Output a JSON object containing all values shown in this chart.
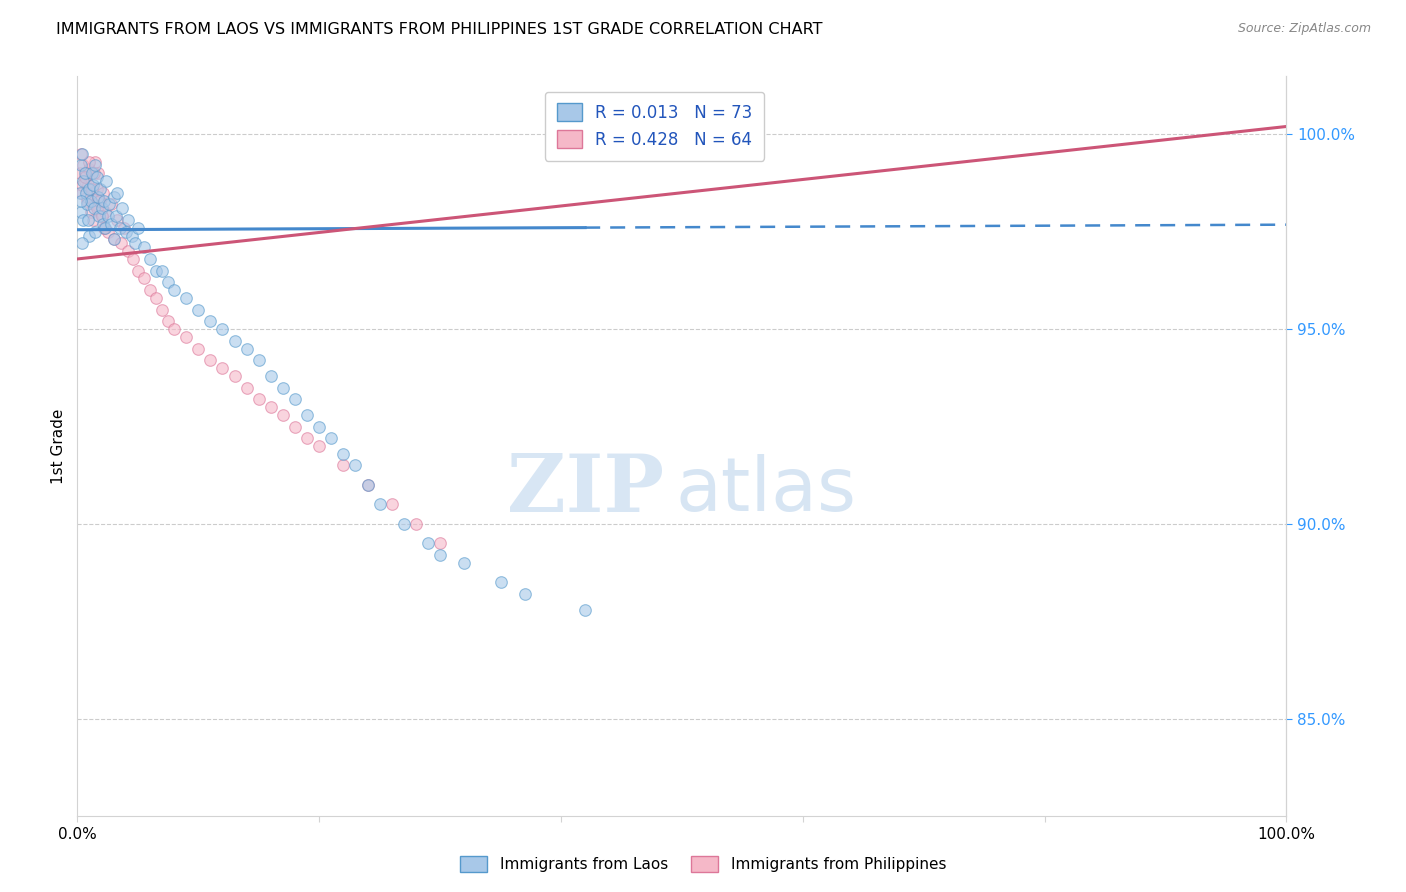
{
  "title": "IMMIGRANTS FROM LAOS VS IMMIGRANTS FROM PHILIPPINES 1ST GRADE CORRELATION CHART",
  "source": "Source: ZipAtlas.com",
  "ylabel": "1st Grade",
  "xmin": 0.0,
  "xmax": 100.0,
  "ymin": 82.5,
  "ymax": 101.5,
  "legend_blue_label": "Immigrants from Laos",
  "legend_pink_label": "Immigrants from Philippines",
  "R_blue": 0.013,
  "N_blue": 73,
  "R_pink": 0.428,
  "N_pink": 64,
  "blue_color": "#a8c8e8",
  "blue_edge_color": "#5599cc",
  "blue_line_color": "#4488cc",
  "pink_color": "#f5b8c8",
  "pink_edge_color": "#dd7799",
  "pink_line_color": "#cc5577",
  "scatter_alpha": 0.6,
  "scatter_size": 70,
  "blue_trend_start_x": 0.0,
  "blue_trend_solid_end_x": 42.0,
  "blue_trend_end_x": 100.0,
  "blue_trend_y_at_0": 97.55,
  "blue_trend_y_at_100": 97.68,
  "pink_trend_y_at_0": 96.8,
  "pink_trend_y_at_100": 100.2,
  "blue_scatter_x": [
    0.2,
    0.3,
    0.3,
    0.4,
    0.5,
    0.5,
    0.6,
    0.7,
    0.8,
    0.9,
    1.0,
    1.0,
    1.1,
    1.2,
    1.3,
    1.4,
    1.5,
    1.5,
    1.6,
    1.7,
    1.8,
    1.9,
    2.0,
    2.1,
    2.2,
    2.3,
    2.4,
    2.5,
    2.6,
    2.8,
    3.0,
    3.0,
    3.2,
    3.3,
    3.5,
    3.7,
    4.0,
    4.2,
    4.5,
    4.8,
    5.0,
    5.5,
    6.0,
    6.5,
    7.0,
    7.5,
    8.0,
    9.0,
    10.0,
    11.0,
    12.0,
    13.0,
    14.0,
    15.0,
    16.0,
    17.0,
    18.0,
    19.0,
    20.0,
    21.0,
    22.0,
    23.0,
    24.0,
    25.0,
    27.0,
    29.0,
    30.0,
    32.0,
    35.0,
    37.0,
    0.3,
    0.4,
    42.0
  ],
  "blue_scatter_y": [
    98.5,
    99.2,
    98.0,
    99.5,
    98.8,
    97.8,
    99.0,
    98.5,
    98.2,
    97.8,
    98.6,
    97.4,
    98.3,
    99.0,
    98.7,
    98.1,
    99.2,
    97.5,
    98.9,
    98.4,
    97.9,
    98.6,
    98.1,
    97.7,
    98.3,
    97.6,
    98.8,
    97.9,
    98.2,
    97.7,
    98.4,
    97.3,
    97.9,
    98.5,
    97.6,
    98.1,
    97.5,
    97.8,
    97.4,
    97.2,
    97.6,
    97.1,
    96.8,
    96.5,
    96.5,
    96.2,
    96.0,
    95.8,
    95.5,
    95.2,
    95.0,
    94.7,
    94.5,
    94.2,
    93.8,
    93.5,
    93.2,
    92.8,
    92.5,
    92.2,
    91.8,
    91.5,
    91.0,
    90.5,
    90.0,
    89.5,
    89.2,
    89.0,
    88.5,
    88.2,
    98.3,
    97.2,
    87.8
  ],
  "pink_scatter_x": [
    0.2,
    0.3,
    0.4,
    0.5,
    0.6,
    0.7,
    0.8,
    0.9,
    1.0,
    1.1,
    1.2,
    1.3,
    1.4,
    1.5,
    1.6,
    1.7,
    1.8,
    1.9,
    2.0,
    2.1,
    2.2,
    2.3,
    2.5,
    2.8,
    3.0,
    3.3,
    3.6,
    3.9,
    4.2,
    4.6,
    5.0,
    5.5,
    6.0,
    6.5,
    7.0,
    7.5,
    8.0,
    9.0,
    10.0,
    11.0,
    12.0,
    13.0,
    14.0,
    15.0,
    16.0,
    17.0,
    18.0,
    19.0,
    20.0,
    22.0,
    24.0,
    26.0,
    28.0,
    30.0,
    0.4,
    0.6,
    0.8,
    1.0,
    1.2,
    1.4,
    1.6,
    1.8,
    2.0,
    2.2
  ],
  "pink_scatter_y": [
    99.0,
    99.5,
    98.5,
    99.2,
    98.8,
    99.0,
    98.3,
    98.7,
    99.1,
    98.0,
    98.5,
    97.8,
    98.2,
    99.3,
    98.6,
    99.0,
    98.1,
    98.3,
    97.9,
    98.5,
    97.6,
    98.0,
    97.5,
    98.2,
    97.3,
    97.8,
    97.2,
    97.6,
    97.0,
    96.8,
    96.5,
    96.3,
    96.0,
    95.8,
    95.5,
    95.2,
    95.0,
    94.8,
    94.5,
    94.2,
    94.0,
    93.8,
    93.5,
    93.2,
    93.0,
    92.8,
    92.5,
    92.2,
    92.0,
    91.5,
    91.0,
    90.5,
    90.0,
    89.5,
    98.7,
    98.9,
    98.4,
    99.3,
    98.6,
    99.0,
    98.1,
    98.3,
    97.9,
    97.6
  ],
  "ytick_positions": [
    85.0,
    90.0,
    95.0,
    100.0
  ],
  "ytick_labels": [
    "85.0%",
    "90.0%",
    "95.0%",
    "100.0%"
  ],
  "grid_color": "#cccccc",
  "tick_color": "#3399ff",
  "watermark_zip_color": "#c8dcf0",
  "watermark_atlas_color": "#b0cce8"
}
